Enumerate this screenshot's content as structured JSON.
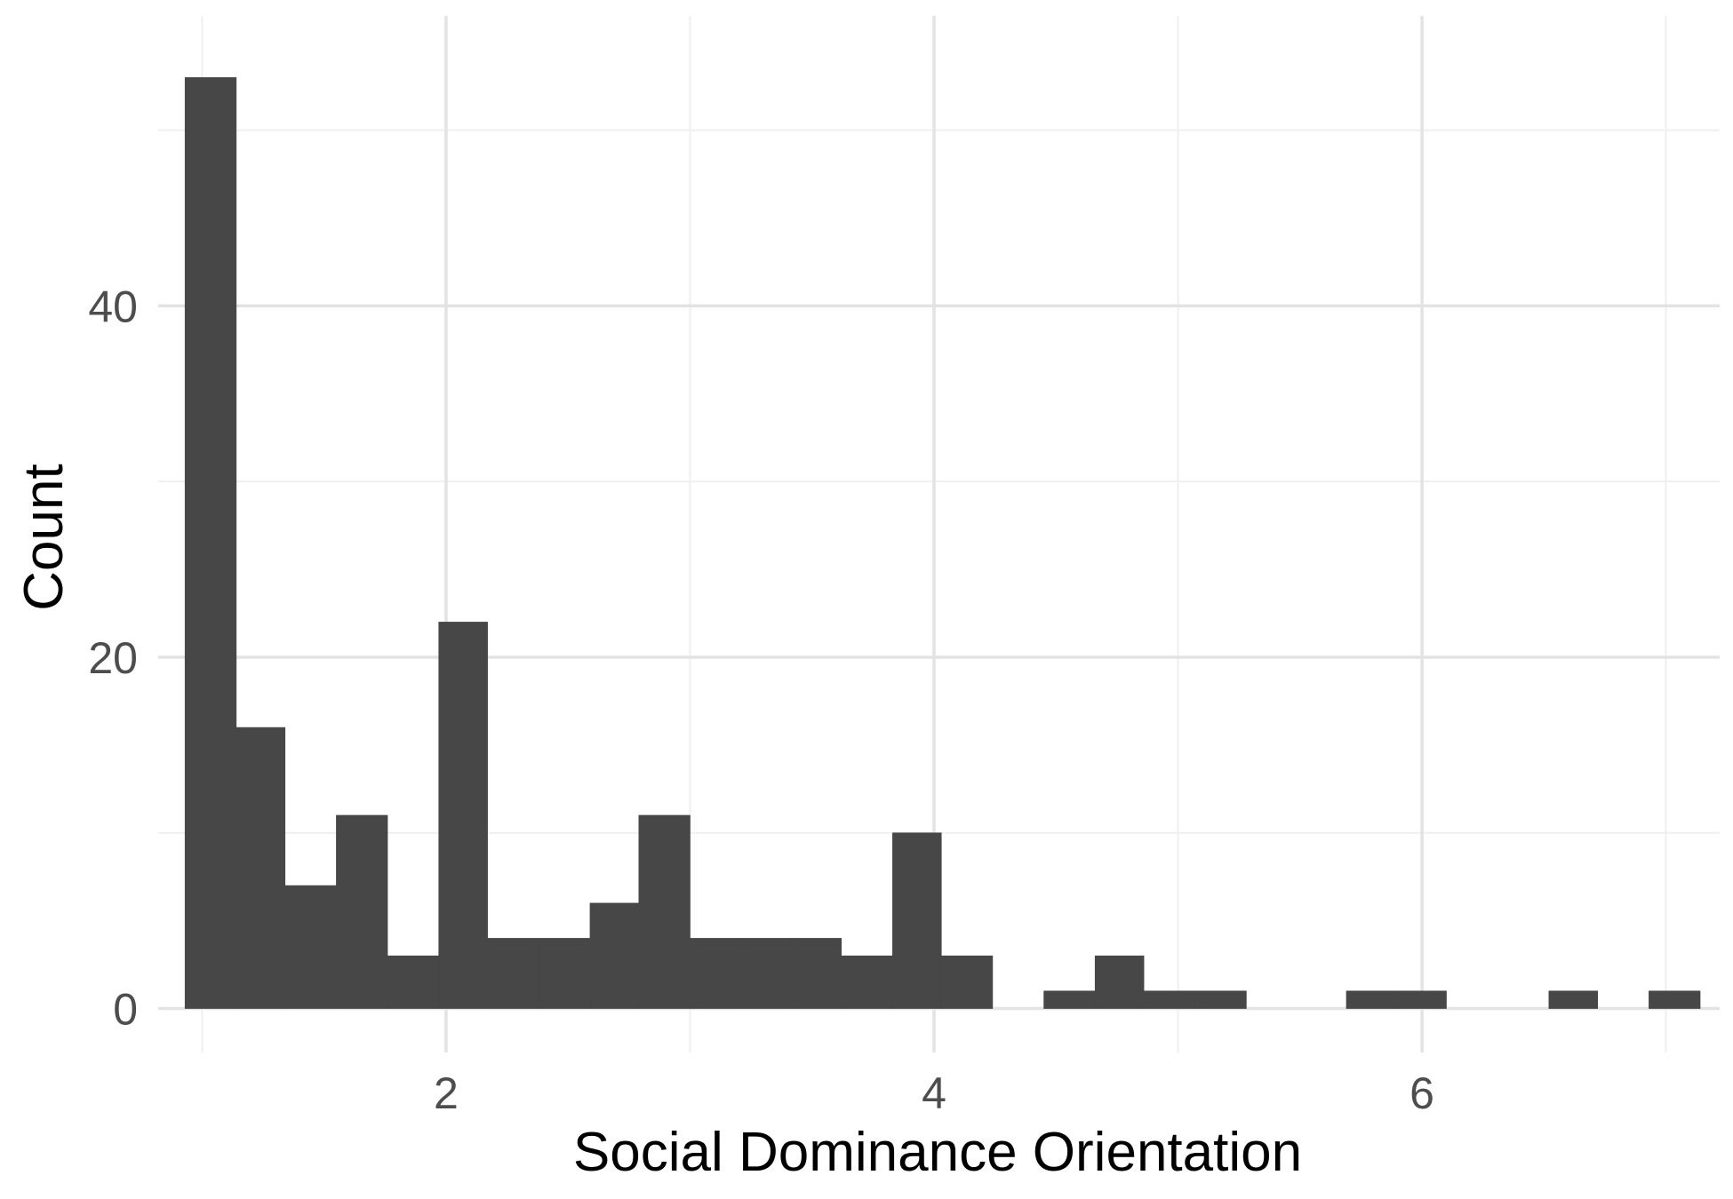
{
  "chart_data": {
    "type": "histogram",
    "xlabel": "Social Dominance Orientation",
    "ylabel": "Count",
    "xlim": [
      0.82,
      7.22
    ],
    "ylim": [
      -2.5,
      56.5
    ],
    "x_ticks": [
      2,
      4,
      6
    ],
    "y_ticks": [
      0,
      20,
      40
    ],
    "grid": true,
    "bar_color": "#474747",
    "bins": [
      {
        "x0": 0.93,
        "x1": 1.14,
        "count": 53
      },
      {
        "x0": 1.14,
        "x1": 1.34,
        "count": 16
      },
      {
        "x0": 1.34,
        "x1": 1.55,
        "count": 7
      },
      {
        "x0": 1.55,
        "x1": 1.76,
        "count": 11
      },
      {
        "x0": 1.76,
        "x1": 1.97,
        "count": 3
      },
      {
        "x0": 1.97,
        "x1": 2.17,
        "count": 22
      },
      {
        "x0": 2.17,
        "x1": 2.38,
        "count": 4
      },
      {
        "x0": 2.38,
        "x1": 2.59,
        "count": 4
      },
      {
        "x0": 2.59,
        "x1": 2.79,
        "count": 6
      },
      {
        "x0": 2.79,
        "x1": 3.0,
        "count": 11
      },
      {
        "x0": 3.0,
        "x1": 3.21,
        "count": 4
      },
      {
        "x0": 3.21,
        "x1": 3.41,
        "count": 4
      },
      {
        "x0": 3.41,
        "x1": 3.62,
        "count": 4
      },
      {
        "x0": 3.62,
        "x1": 3.83,
        "count": 3
      },
      {
        "x0": 3.83,
        "x1": 4.03,
        "count": 10
      },
      {
        "x0": 4.03,
        "x1": 4.24,
        "count": 3
      },
      {
        "x0": 4.24,
        "x1": 4.45,
        "count": 0
      },
      {
        "x0": 4.45,
        "x1": 4.66,
        "count": 1
      },
      {
        "x0": 4.66,
        "x1": 4.86,
        "count": 3
      },
      {
        "x0": 4.86,
        "x1": 5.07,
        "count": 1
      },
      {
        "x0": 5.07,
        "x1": 5.28,
        "count": 1
      },
      {
        "x0": 5.28,
        "x1": 5.48,
        "count": 0
      },
      {
        "x0": 5.48,
        "x1": 5.69,
        "count": 0
      },
      {
        "x0": 5.69,
        "x1": 5.9,
        "count": 1
      },
      {
        "x0": 5.9,
        "x1": 6.1,
        "count": 1
      },
      {
        "x0": 6.1,
        "x1": 6.31,
        "count": 0
      },
      {
        "x0": 6.31,
        "x1": 6.52,
        "count": 0
      },
      {
        "x0": 6.52,
        "x1": 6.72,
        "count": 1
      },
      {
        "x0": 6.72,
        "x1": 6.93,
        "count": 0
      },
      {
        "x0": 6.93,
        "x1": 7.14,
        "count": 1
      }
    ]
  }
}
